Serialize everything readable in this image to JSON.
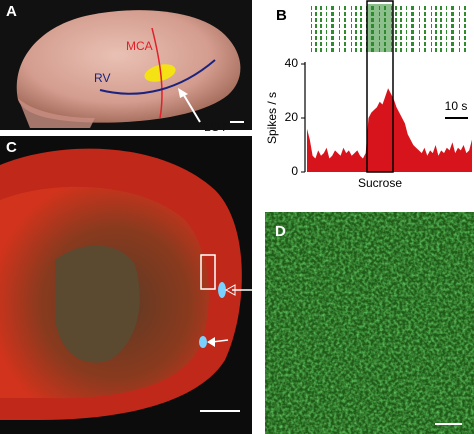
{
  "panels": {
    "a": {
      "label": "A",
      "mca": "MCA",
      "rv": "RV",
      "lot": "LOT"
    },
    "b": {
      "label": "B"
    },
    "c": {
      "label": "C"
    },
    "d": {
      "label": "D"
    }
  },
  "chart_data": {
    "type": "area",
    "ylabel": "Spikes / s",
    "ylim": [
      0,
      40
    ],
    "yticks": [
      0,
      20,
      40
    ],
    "values": [
      16,
      12,
      6,
      5,
      8,
      6,
      7,
      9,
      5,
      6,
      8,
      7,
      6,
      9,
      7,
      8,
      6,
      7,
      8,
      6,
      5,
      7,
      20,
      22,
      23,
      24,
      26,
      25,
      28,
      31,
      29,
      27,
      24,
      22,
      20,
      18,
      14,
      12,
      10,
      9,
      8,
      7,
      9,
      6,
      8,
      7,
      10,
      6,
      8,
      7,
      9,
      8,
      11,
      7,
      9,
      8,
      10,
      7,
      8,
      12
    ],
    "color": "#d7141c",
    "annotation": "Sucrose",
    "scale_bar": "10 s"
  }
}
